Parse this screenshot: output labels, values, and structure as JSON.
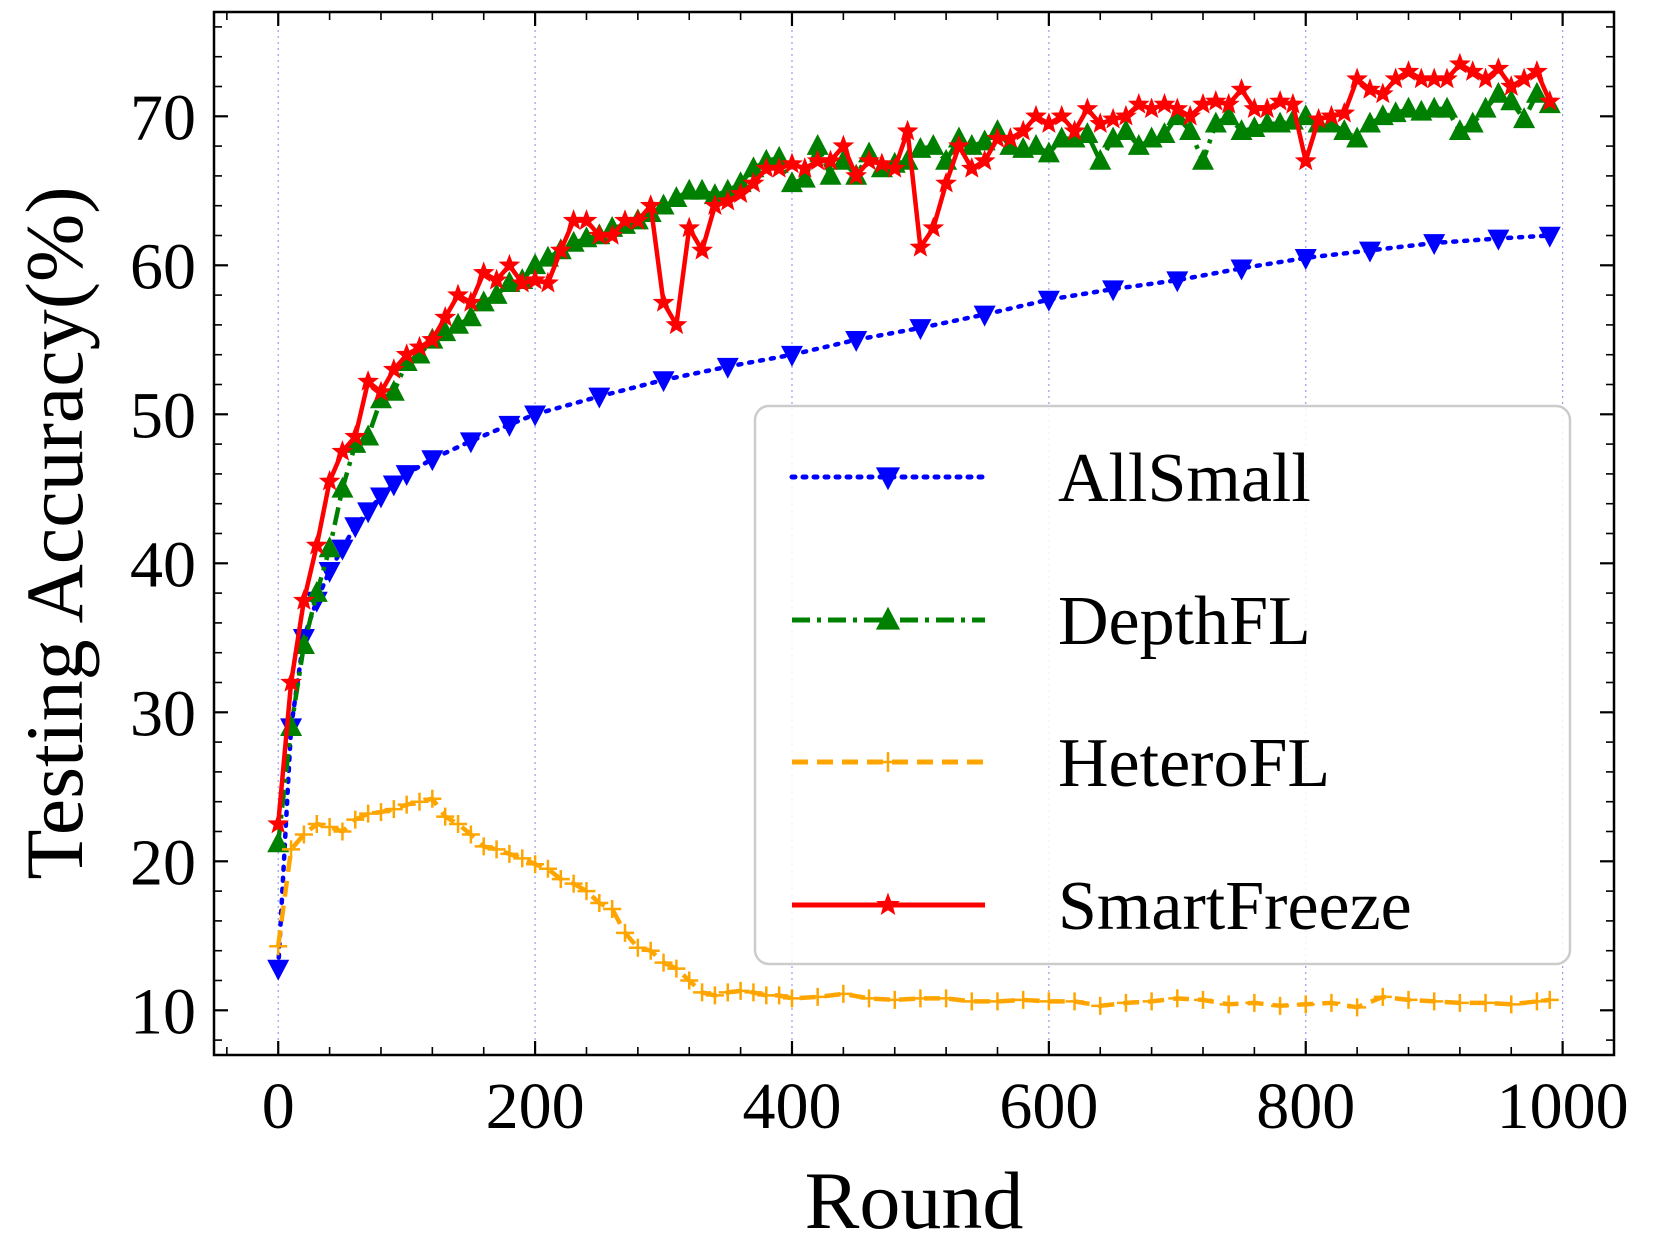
{
  "chart_data": {
    "type": "line",
    "title": "",
    "xlabel": "Round",
    "ylabel": "Testing Accuracy(%)",
    "xlim": [
      -50,
      1040
    ],
    "ylim": [
      7,
      77
    ],
    "xticks": [
      0,
      200,
      400,
      600,
      800,
      1000
    ],
    "yticks": [
      10,
      20,
      30,
      40,
      50,
      60,
      70
    ],
    "xtick_labels": [
      "0",
      "200",
      "400",
      "600",
      "800",
      "1000"
    ],
    "ytick_labels": [
      "10",
      "20",
      "30",
      "40",
      "50",
      "60",
      "70"
    ],
    "grid": "vertical dotted lines at x ticks",
    "legend_position": "lower-right",
    "series": [
      {
        "name": "AllSmall",
        "color": "#0000ff",
        "line_style": "dotted",
        "marker": "triangle-down",
        "x": [
          0,
          10,
          20,
          30,
          40,
          50,
          60,
          70,
          80,
          90,
          100,
          120,
          150,
          180,
          200,
          250,
          300,
          350,
          400,
          450,
          500,
          550,
          600,
          650,
          700,
          750,
          800,
          850,
          900,
          950,
          990
        ],
        "y": [
          12.8,
          29.0,
          35.0,
          37.5,
          39.5,
          41.0,
          42.5,
          43.5,
          44.5,
          45.3,
          46.0,
          47.0,
          48.2,
          49.3,
          50.0,
          51.2,
          52.3,
          53.2,
          54.0,
          55.0,
          55.8,
          56.7,
          57.7,
          58.4,
          59.0,
          59.8,
          60.5,
          61.0,
          61.5,
          61.8,
          62.0
        ]
      },
      {
        "name": "DepthFL",
        "color": "#008000",
        "line_style": "dashdot",
        "marker": "triangle-up",
        "x": [
          0,
          10,
          20,
          30,
          40,
          50,
          60,
          70,
          80,
          90,
          100,
          110,
          120,
          130,
          140,
          150,
          160,
          170,
          180,
          190,
          200,
          210,
          220,
          230,
          240,
          250,
          260,
          270,
          280,
          290,
          300,
          310,
          320,
          330,
          340,
          350,
          360,
          370,
          380,
          390,
          400,
          410,
          420,
          430,
          440,
          450,
          460,
          470,
          480,
          490,
          500,
          510,
          520,
          530,
          540,
          550,
          560,
          570,
          580,
          590,
          600,
          610,
          620,
          630,
          640,
          650,
          660,
          670,
          680,
          690,
          700,
          710,
          720,
          730,
          740,
          750,
          760,
          770,
          780,
          790,
          800,
          810,
          820,
          830,
          840,
          850,
          860,
          870,
          880,
          890,
          900,
          910,
          920,
          930,
          940,
          950,
          960,
          970,
          980,
          990
        ],
        "y": [
          21.2,
          29.0,
          34.5,
          38.0,
          41.0,
          45.0,
          48.0,
          48.5,
          51.0,
          51.5,
          53.5,
          54.0,
          55.0,
          55.5,
          56.0,
          56.5,
          57.5,
          58.0,
          58.8,
          59.0,
          60.0,
          60.5,
          61.0,
          61.5,
          61.8,
          62.0,
          62.5,
          62.7,
          63.0,
          63.5,
          64.0,
          64.5,
          65.0,
          65.0,
          64.7,
          65.0,
          65.5,
          66.5,
          67.0,
          67.2,
          65.5,
          65.8,
          68.0,
          66.0,
          67.0,
          66.0,
          67.5,
          66.5,
          66.8,
          67.0,
          67.8,
          68.0,
          67.0,
          68.5,
          68.0,
          68.3,
          69.0,
          68.0,
          67.8,
          68.0,
          67.5,
          68.5,
          68.5,
          68.8,
          67.0,
          68.5,
          69.0,
          68.0,
          68.5,
          68.8,
          70.0,
          69.0,
          67.0,
          69.5,
          70.0,
          69.0,
          69.2,
          69.5,
          69.5,
          69.7,
          70.0,
          69.5,
          69.5,
          69.0,
          68.5,
          69.5,
          70.0,
          70.2,
          70.5,
          70.3,
          70.5,
          70.5,
          69.0,
          69.5,
          70.5,
          71.5,
          71.0,
          69.8,
          71.5,
          70.8
        ]
      },
      {
        "name": "HeteroFL",
        "color": "#ffa500",
        "line_style": "dashed",
        "marker": "plus",
        "x": [
          0,
          10,
          20,
          30,
          40,
          50,
          60,
          70,
          80,
          90,
          100,
          110,
          120,
          130,
          140,
          150,
          160,
          170,
          180,
          190,
          200,
          210,
          220,
          230,
          240,
          250,
          260,
          270,
          280,
          290,
          300,
          310,
          320,
          330,
          340,
          350,
          360,
          370,
          380,
          390,
          400,
          420,
          440,
          460,
          480,
          500,
          520,
          540,
          560,
          580,
          600,
          620,
          640,
          660,
          680,
          700,
          720,
          740,
          760,
          780,
          800,
          820,
          840,
          860,
          880,
          900,
          920,
          940,
          960,
          980,
          990
        ],
        "y": [
          14.3,
          20.8,
          21.8,
          22.5,
          22.3,
          22.0,
          22.8,
          23.2,
          23.3,
          23.5,
          23.8,
          24.0,
          24.2,
          23.0,
          22.5,
          21.8,
          21.0,
          20.8,
          20.5,
          20.2,
          19.8,
          19.5,
          18.8,
          18.5,
          18.0,
          17.2,
          16.8,
          15.2,
          14.2,
          14.0,
          13.2,
          12.8,
          12.0,
          11.2,
          11.0,
          11.2,
          11.3,
          11.2,
          11.0,
          11.0,
          10.8,
          10.9,
          11.1,
          10.8,
          10.7,
          10.8,
          10.8,
          10.6,
          10.6,
          10.7,
          10.6,
          10.6,
          10.3,
          10.5,
          10.6,
          10.8,
          10.7,
          10.4,
          10.5,
          10.3,
          10.4,
          10.5,
          10.2,
          10.9,
          10.7,
          10.6,
          10.5,
          10.5,
          10.4,
          10.6,
          10.7
        ]
      },
      {
        "name": "SmartFreeze",
        "color": "#ff0000",
        "line_style": "solid",
        "marker": "star",
        "x": [
          0,
          10,
          20,
          30,
          40,
          50,
          60,
          70,
          80,
          90,
          100,
          110,
          120,
          130,
          140,
          150,
          160,
          170,
          180,
          190,
          200,
          210,
          220,
          230,
          240,
          250,
          260,
          270,
          280,
          290,
          300,
          310,
          320,
          330,
          340,
          350,
          360,
          370,
          380,
          390,
          400,
          410,
          420,
          430,
          440,
          450,
          460,
          470,
          480,
          490,
          500,
          510,
          520,
          530,
          540,
          550,
          560,
          570,
          580,
          590,
          600,
          610,
          620,
          630,
          640,
          650,
          660,
          670,
          680,
          690,
          700,
          710,
          720,
          730,
          740,
          750,
          760,
          770,
          780,
          790,
          800,
          810,
          820,
          830,
          840,
          850,
          860,
          870,
          880,
          890,
          900,
          910,
          920,
          930,
          940,
          950,
          960,
          970,
          980,
          990
        ],
        "y": [
          22.5,
          32.0,
          37.5,
          41.2,
          45.5,
          47.5,
          48.5,
          52.2,
          51.5,
          53.0,
          54.0,
          54.5,
          55.0,
          56.5,
          58.0,
          57.5,
          59.5,
          59.0,
          60.0,
          58.8,
          59.0,
          58.8,
          61.0,
          63.0,
          63.0,
          62.0,
          62.0,
          63.0,
          63.0,
          64.0,
          57.5,
          56.0,
          62.5,
          61.0,
          64.0,
          64.3,
          64.8,
          65.5,
          66.5,
          66.5,
          66.8,
          66.5,
          67.0,
          67.0,
          68.0,
          66.0,
          67.0,
          66.8,
          66.5,
          69.0,
          61.2,
          62.5,
          65.5,
          68.0,
          66.5,
          67.0,
          68.5,
          68.5,
          69.0,
          70.0,
          69.5,
          70.0,
          69.0,
          70.5,
          69.5,
          69.8,
          70.0,
          70.8,
          70.5,
          70.8,
          70.5,
          70.0,
          70.8,
          71.0,
          70.8,
          71.8,
          70.5,
          70.5,
          71.0,
          70.8,
          67.0,
          69.8,
          70.0,
          70.2,
          72.5,
          71.8,
          71.5,
          72.5,
          73.0,
          72.5,
          72.5,
          72.5,
          73.5,
          73.0,
          72.5,
          73.2,
          72.0,
          72.5,
          73.0,
          71.0
        ]
      }
    ]
  }
}
